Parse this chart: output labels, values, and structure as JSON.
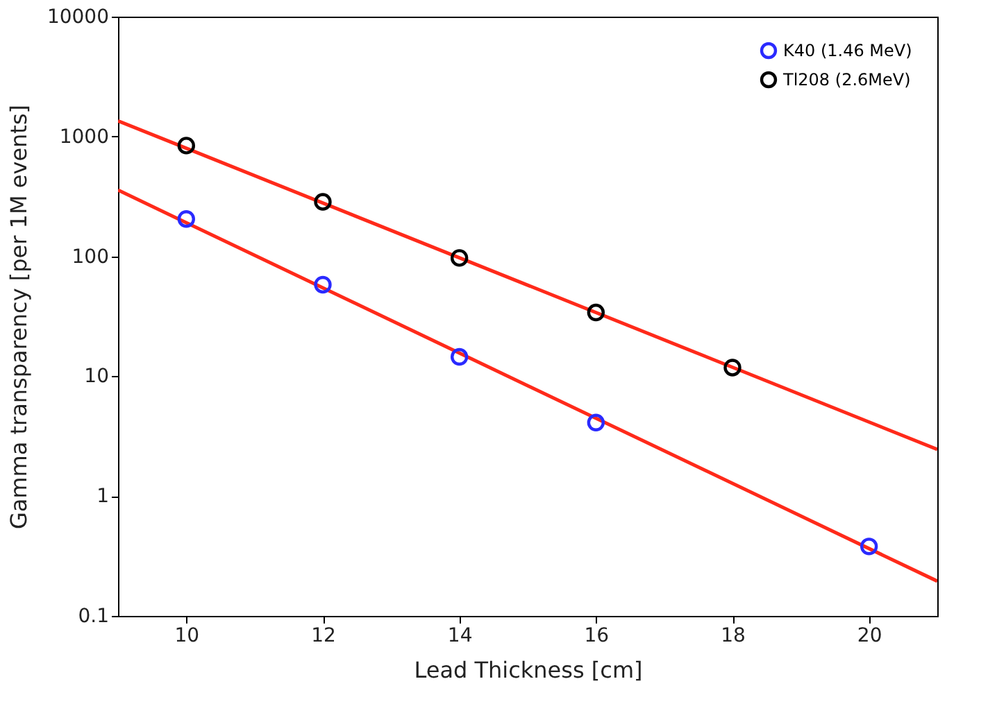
{
  "chart_data": {
    "type": "scatter",
    "xlabel": "Lead Thickness [cm]",
    "ylabel": "Gamma transparency [per 1M events]",
    "xlim": [
      9,
      21
    ],
    "xticks": [
      10,
      12,
      14,
      16,
      18,
      20
    ],
    "ylim": [
      0.1,
      10000
    ],
    "yticks": [
      0.1,
      1,
      10,
      100,
      1000,
      10000
    ],
    "log": "y",
    "grid": false,
    "legend": "top right",
    "marker": "circle",
    "series": [
      {
        "type": "line",
        "marker": "none",
        "color": "#ff2a1a",
        "x": [
          9,
          21
        ],
        "values": [
          357,
          0.195
        ]
      },
      {
        "type": "line",
        "marker": "none",
        "color": "#ff2a1a",
        "x": [
          9,
          21
        ],
        "values": [
          1350,
          2.45
        ]
      },
      {
        "name": "K40 (1.46 MeV)",
        "color": "#2a2aff",
        "x": [
          10,
          12,
          14,
          16,
          20
        ],
        "values": [
          205,
          58,
          14.5,
          4.1,
          0.38
        ]
      },
      {
        "name": "Tl208 (2.6MeV)",
        "color": "#000000",
        "x": [
          10,
          12,
          14,
          16,
          18
        ],
        "values": [
          840,
          285,
          97,
          34,
          11.8
        ]
      }
    ]
  }
}
